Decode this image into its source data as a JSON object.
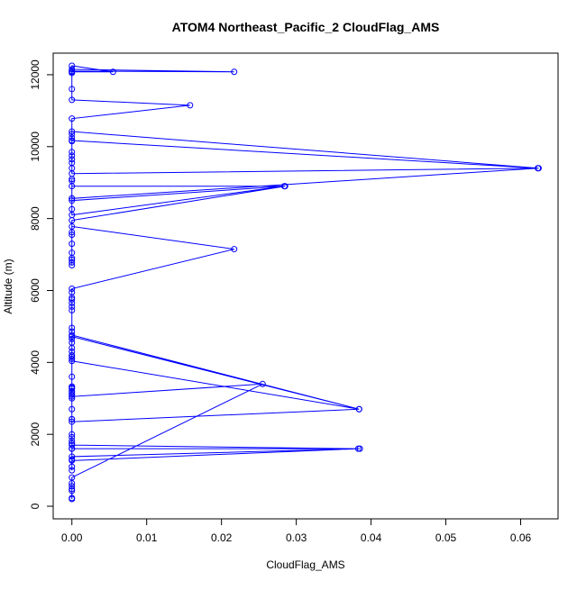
{
  "chart_data": {
    "type": "line",
    "title": "ATOM4 Northeast_Pacific_2 CloudFlag_AMS",
    "xlabel": "CloudFlag_AMS",
    "ylabel": "Altitude (m)",
    "xlim": [
      -0.0025,
      0.065
    ],
    "ylim": [
      -350,
      12600
    ],
    "xticks": [
      0,
      0.01,
      0.02,
      0.03,
      0.04,
      0.05,
      0.06
    ],
    "xtick_labels": [
      "0.00",
      "0.01",
      "0.02",
      "0.03",
      "0.04",
      "0.05",
      "0.06"
    ],
    "yticks": [
      0,
      2000,
      4000,
      6000,
      8000,
      10000,
      12000
    ],
    "ytick_labels": [
      "0",
      "2000",
      "4000",
      "6000",
      "8000",
      "10000",
      "12000"
    ],
    "grid": false,
    "marker": "open-circle",
    "color": "#0000ff",
    "series": [
      {
        "points": [
          [
            0,
            200
          ],
          [
            0,
            230
          ],
          [
            0,
            430
          ],
          [
            0,
            480
          ],
          [
            0,
            560
          ],
          [
            0,
            640
          ],
          [
            0,
            800
          ],
          [
            0.0255,
            3400
          ],
          [
            0,
            3050
          ],
          [
            0,
            3150
          ],
          [
            0,
            3270
          ],
          [
            0,
            3330
          ],
          [
            0,
            3600
          ],
          [
            0,
            4040
          ],
          [
            0.0384,
            2700
          ],
          [
            0,
            2350
          ],
          [
            0,
            2420
          ],
          [
            0,
            1750
          ],
          [
            0,
            1600
          ],
          [
            0,
            1380
          ],
          [
            0.0385,
            1600
          ],
          [
            0,
            1600
          ],
          [
            0,
            1300
          ],
          [
            0,
            1000
          ],
          [
            0,
            1100
          ],
          [
            0,
            1270
          ],
          [
            0.0383,
            1600
          ],
          [
            0,
            1700
          ],
          [
            0,
            1820
          ],
          [
            0,
            1920
          ],
          [
            0,
            2000
          ],
          [
            0,
            2420
          ],
          [
            0,
            2700
          ],
          [
            0,
            3000
          ],
          [
            0,
            3100
          ],
          [
            0,
            3200
          ],
          [
            0,
            3300
          ],
          [
            0,
            4100
          ],
          [
            0,
            4150
          ],
          [
            0,
            4200
          ],
          [
            0,
            4300
          ],
          [
            0,
            4400
          ],
          [
            0,
            4550
          ],
          [
            0,
            4650
          ],
          [
            0,
            4720
          ],
          [
            0.0384,
            2700
          ],
          [
            0,
            4760
          ],
          [
            0,
            4860
          ],
          [
            0,
            4960
          ],
          [
            0,
            5450
          ],
          [
            0,
            5550
          ],
          [
            0,
            5650
          ],
          [
            0,
            5750
          ],
          [
            0,
            5800
          ],
          [
            0,
            5950
          ],
          [
            0,
            6050
          ],
          [
            0.0217,
            7150
          ],
          [
            0,
            7780
          ],
          [
            0,
            7550
          ],
          [
            0,
            7300
          ],
          [
            0,
            7050
          ],
          [
            0,
            6900
          ],
          [
            0,
            6850
          ],
          [
            0,
            6780
          ],
          [
            0,
            6700
          ],
          [
            0,
            7620
          ],
          [
            0,
            7950
          ],
          [
            0.0285,
            8900
          ],
          [
            0,
            8500
          ],
          [
            0,
            8560
          ],
          [
            0,
            8260
          ],
          [
            0,
            8100
          ],
          [
            0.0284,
            8900
          ],
          [
            0,
            8900
          ],
          [
            0,
            9050
          ],
          [
            0,
            9100
          ],
          [
            0,
            8560
          ],
          [
            0.0623,
            9400
          ],
          [
            0,
            9250
          ],
          [
            0,
            9400
          ],
          [
            0,
            9550
          ],
          [
            0,
            9650
          ],
          [
            0,
            9750
          ],
          [
            0,
            9850
          ],
          [
            0,
            10150
          ],
          [
            0,
            10250
          ],
          [
            0,
            10350
          ],
          [
            0,
            10420
          ],
          [
            0.0624,
            9400
          ],
          [
            0,
            10170
          ],
          [
            0,
            10780
          ],
          [
            0.0158,
            11150
          ],
          [
            0,
            11300
          ],
          [
            0,
            11600
          ],
          [
            0,
            12050
          ],
          [
            0,
            12100
          ],
          [
            0.0217,
            12080
          ],
          [
            0,
            12150
          ],
          [
            0,
            12250
          ],
          [
            0.0055,
            12080
          ],
          [
            0,
            12080
          ]
        ]
      }
    ]
  }
}
